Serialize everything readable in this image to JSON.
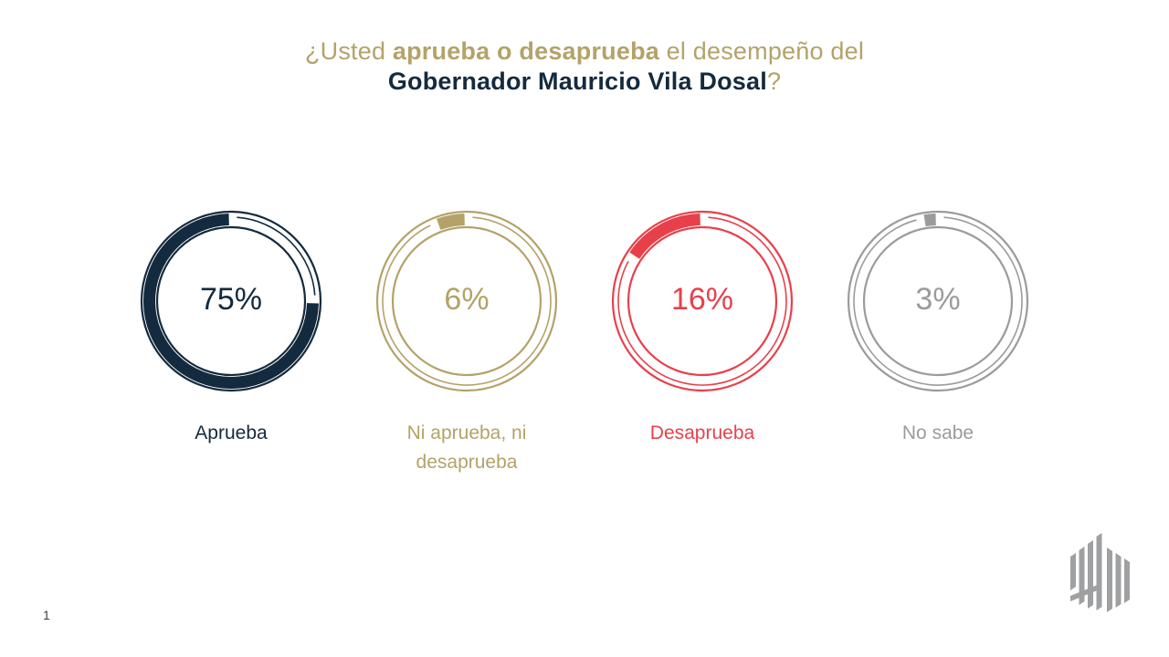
{
  "title": {
    "line1_prefix": "¿Usted ",
    "line1_emphasis": "aprueba o desaprueba",
    "line1_suffix": " el desempeño del",
    "line2_emphasis": "Gobernador Mauricio Vila Dosal",
    "line2_suffix": "?"
  },
  "chart_data": {
    "type": "pie",
    "subtype": "donut-gauges",
    "title": "¿Usted aprueba o desaprueba el desempeño del Gobernador Mauricio Vila Dosal?",
    "unit": "%",
    "legend_position": "below-each-gauge",
    "gauge_start": "top",
    "gauge_direction": "counterclockwise",
    "series": [
      {
        "label": "Aprueba",
        "value": 75,
        "display": "75%",
        "color": "#142a3e"
      },
      {
        "label": "Ni aprueba, ni desaprueba",
        "value": 6,
        "display": "6%",
        "color": "#b4a269"
      },
      {
        "label": "Desaprueba",
        "value": 16,
        "display": "16%",
        "color": "#e8404a"
      },
      {
        "label": "No sabe",
        "value": 3,
        "display": "3%",
        "color": "#9b9b9b"
      }
    ]
  },
  "page_number": "1",
  "colors": {
    "background": "#ffffff",
    "title_gold": "#b4a269",
    "title_navy": "#142a3e",
    "logo_gray": "#9fa0a2"
  }
}
